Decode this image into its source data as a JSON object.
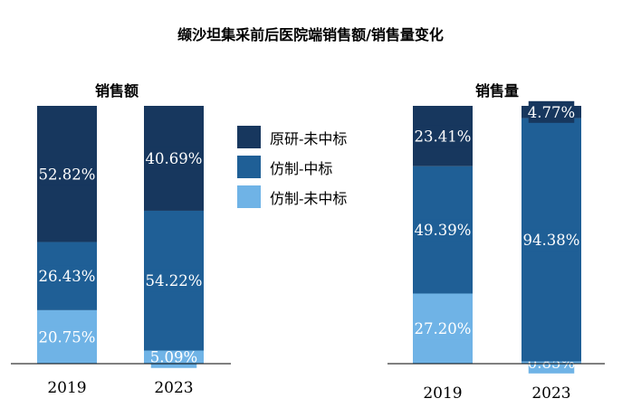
{
  "chart_data": {
    "type": "bar",
    "title": "缬沙坦集采前后医院端销售额/销售量变化",
    "legend": {
      "position": "center",
      "entries": [
        {
          "name": "原研-未中标",
          "color": "#17375e"
        },
        {
          "name": "仿制-中标",
          "color": "#1f5f96"
        },
        {
          "name": "仿制-未中标",
          "color": "#6fb3e6"
        }
      ]
    },
    "charts": [
      {
        "subtitle": "销售额",
        "categories": [
          "2019",
          "2023"
        ],
        "ylim": [
          0,
          100
        ],
        "series": [
          {
            "name": "仿制-未中标",
            "color": "#6fb3e6",
            "values": [
              20.75,
              5.09
            ],
            "labels": [
              "20.75%",
              "5.09%"
            ]
          },
          {
            "name": "仿制-中标",
            "color": "#1f5f96",
            "values": [
              26.43,
              54.22
            ],
            "labels": [
              "26.43%",
              "54.22%"
            ]
          },
          {
            "name": "原研-未中标",
            "color": "#17375e",
            "values": [
              52.82,
              40.69
            ],
            "labels": [
              "52.82%",
              "40.69%"
            ]
          }
        ]
      },
      {
        "subtitle": "销售量",
        "categories": [
          "2019",
          "2023"
        ],
        "ylim": [
          0,
          100
        ],
        "series": [
          {
            "name": "仿制-未中标",
            "color": "#6fb3e6",
            "values": [
              27.2,
              0.85
            ],
            "labels": [
              "27.20%",
              "0.85%"
            ]
          },
          {
            "name": "仿制-中标",
            "color": "#1f5f96",
            "values": [
              49.39,
              94.38
            ],
            "labels": [
              "49.39%",
              "94.38%"
            ]
          },
          {
            "name": "原研-未中标",
            "color": "#17375e",
            "values": [
              23.41,
              4.77
            ],
            "labels": [
              "23.41%",
              "4.77%"
            ]
          }
        ]
      }
    ]
  }
}
